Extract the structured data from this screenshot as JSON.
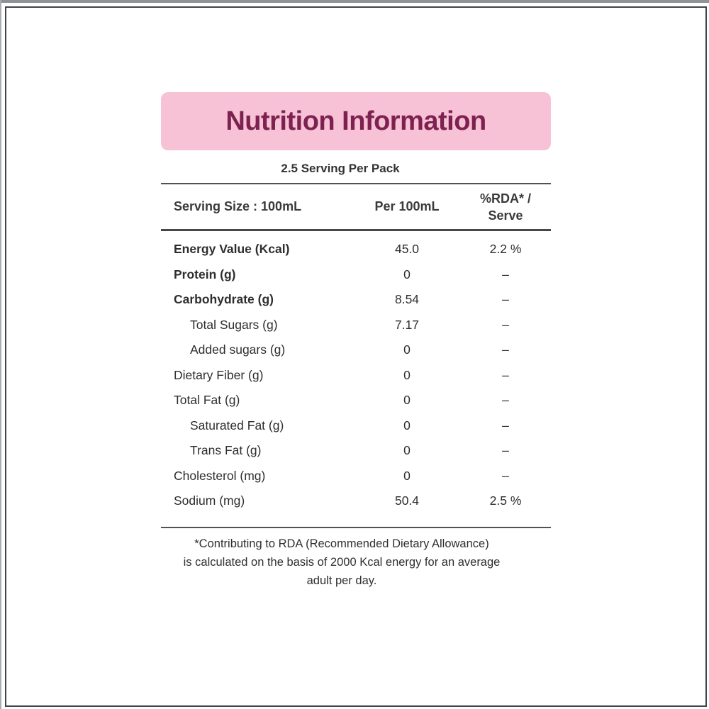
{
  "header": {
    "title": "Nutrition Information",
    "serving_per_pack": "2.5 Serving Per Pack"
  },
  "table": {
    "columns": {
      "serving_size": "Serving Size : 100mL",
      "per_100ml": "Per 100mL",
      "rda_per_serve": "%RDA* / Serve"
    },
    "rows": [
      {
        "name": "Energy Value (Kcal)",
        "per_100ml": "45.0",
        "rda": "2.2 %",
        "indent": false,
        "bold": true
      },
      {
        "name": "Protein (g)",
        "per_100ml": "0",
        "rda": "–",
        "indent": false,
        "bold": true
      },
      {
        "name": "Carbohydrate (g)",
        "per_100ml": "8.54",
        "rda": "–",
        "indent": false,
        "bold": true
      },
      {
        "name": "Total Sugars (g)",
        "per_100ml": "7.17",
        "rda": "–",
        "indent": true,
        "bold": false
      },
      {
        "name": "Added sugars (g)",
        "per_100ml": "0",
        "rda": "–",
        "indent": true,
        "bold": false
      },
      {
        "name": "Dietary Fiber (g)",
        "per_100ml": "0",
        "rda": "–",
        "indent": false,
        "bold": false
      },
      {
        "name": "Total Fat (g)",
        "per_100ml": "0",
        "rda": "–",
        "indent": false,
        "bold": false
      },
      {
        "name": "Saturated Fat (g)",
        "per_100ml": "0",
        "rda": "–",
        "indent": true,
        "bold": false
      },
      {
        "name": "Trans Fat (g)",
        "per_100ml": "0",
        "rda": "–",
        "indent": true,
        "bold": false
      },
      {
        "name": "Cholesterol (mg)",
        "per_100ml": "0",
        "rda": "–",
        "indent": false,
        "bold": false
      },
      {
        "name": "Sodium (mg)",
        "per_100ml": "50.4",
        "rda": "2.5 %",
        "indent": false,
        "bold": false
      }
    ]
  },
  "footnote": {
    "lines": [
      "*Contributing to RDA (Recommended Dietary Allowance)",
      "is calculated on the basis of 2000 Kcal energy for an average",
      "adult per day."
    ]
  },
  "colors": {
    "banner_background": "#f7c1d6",
    "title_text": "#7d2150",
    "body_text": "#2e2e2e",
    "rule": "#4c4e50",
    "frame_border": "#3d444b"
  }
}
